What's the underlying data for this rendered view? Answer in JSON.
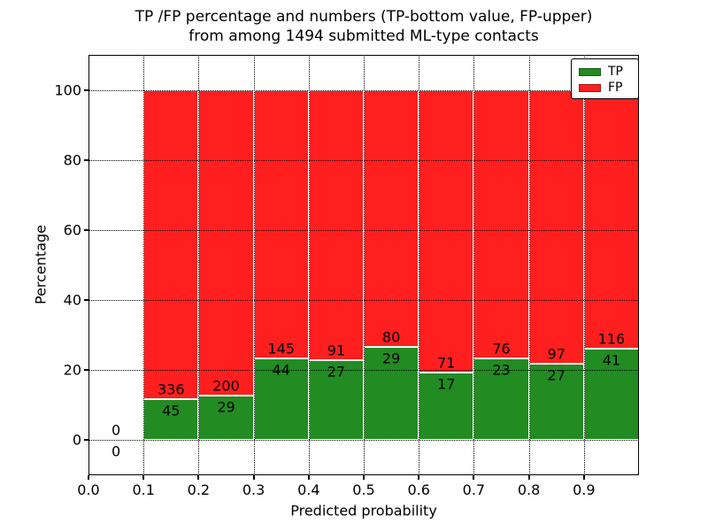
{
  "chart_data": {
    "type": "bar",
    "stacked": true,
    "title_lines": [
      "TP /FP percentage and numbers (TP-bottom value, FP-upper)",
      "from among 1494 submitted ML-type contacts"
    ],
    "total_submitted": 1494,
    "xlabel": "Predicted probability",
    "ylabel": "Percentage",
    "xlim": [
      0.0,
      1.0
    ],
    "ylim": [
      -10,
      110
    ],
    "xticks": [
      0.0,
      0.1,
      0.2,
      0.3,
      0.4,
      0.5,
      0.6,
      0.7,
      0.8,
      0.9
    ],
    "yticks": [
      0,
      20,
      40,
      60,
      80,
      100
    ],
    "grid": "dotted",
    "colors": {
      "tp": "#228b22",
      "fp": "#ff1f1f",
      "text": "#000000",
      "background": "#ffffff"
    },
    "legend": {
      "position": "upper right",
      "entries": [
        {
          "label": "TP",
          "color": "#228b22"
        },
        {
          "label": "FP",
          "color": "#ff1f1f"
        }
      ]
    },
    "bins": [
      {
        "x0": 0.0,
        "x1": 0.1,
        "tp": 0,
        "fp": 0,
        "tp_pct": 0
      },
      {
        "x0": 0.1,
        "x1": 0.2,
        "tp": 45,
        "fp": 336,
        "tp_pct": 11.81
      },
      {
        "x0": 0.2,
        "x1": 0.3,
        "tp": 29,
        "fp": 200,
        "tp_pct": 12.66
      },
      {
        "x0": 0.3,
        "x1": 0.4,
        "tp": 44,
        "fp": 145,
        "tp_pct": 23.28
      },
      {
        "x0": 0.4,
        "x1": 0.5,
        "tp": 27,
        "fp": 91,
        "tp_pct": 22.88
      },
      {
        "x0": 0.5,
        "x1": 0.6,
        "tp": 29,
        "fp": 80,
        "tp_pct": 26.61
      },
      {
        "x0": 0.6,
        "x1": 0.7,
        "tp": 17,
        "fp": 71,
        "tp_pct": 19.32
      },
      {
        "x0": 0.7,
        "x1": 0.8,
        "tp": 23,
        "fp": 76,
        "tp_pct": 23.23
      },
      {
        "x0": 0.8,
        "x1": 0.9,
        "tp": 27,
        "fp": 97,
        "tp_pct": 21.77
      },
      {
        "x0": 0.9,
        "x1": 1.0,
        "tp": 41,
        "fp": 116,
        "tp_pct": 26.11
      }
    ]
  }
}
